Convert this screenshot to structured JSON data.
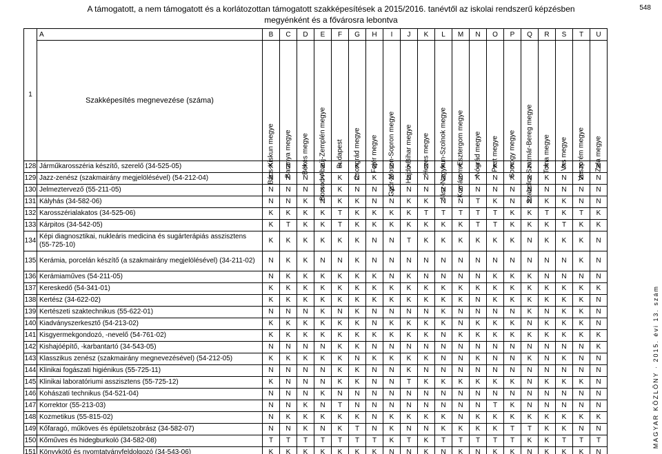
{
  "page": {
    "number": "548",
    "side_text": "MAGYAR KÖZLÖNY · 2015. évi 13. szám"
  },
  "header": {
    "line1": "A támogatott, a nem támogatott és a korlátozottan támogatott szakképesítések a 2015/2016. tanévtől az iskolai rendszerű képzésben",
    "line2": "megyénként és a fővárosra lebontva"
  },
  "columns": {
    "row_label": "1",
    "name_label": "Szakképesítés megnevezése (száma)",
    "letters": [
      "A",
      "B",
      "C",
      "D",
      "E",
      "F",
      "G",
      "H",
      "I",
      "J",
      "K",
      "L",
      "M",
      "N",
      "O",
      "P",
      "Q",
      "R",
      "S",
      "T",
      "U"
    ],
    "county_headers": [
      "Bács-Kiskun megye",
      "Baranya megye",
      "Békés megye",
      "Borsod-Abaúj-Zemplén megye",
      "Budapest",
      "Csongrád megye",
      "Fejér megye",
      "Győr-Moson-Sopron megye",
      "Hajdú-Bihar megye",
      "Heves megye",
      "Jász-Nagykun-Szolnok megye",
      "Komárom-Esztergom megye",
      "Nógrád megye",
      "Pest megye",
      "Somogy megye",
      "Szabolcs-Szatmár-Bereg megye",
      "Tolna megye",
      "Vas megye",
      "Veszprém megye",
      "Zala megye"
    ]
  },
  "rows": [
    {
      "n": "128",
      "name": "Járműkarosszéria készítő, szerelő (34-525-05)",
      "v": [
        "K",
        "N",
        "K",
        "N",
        "T",
        "K",
        "N",
        "N",
        "K",
        "N",
        "K",
        "K",
        "T",
        "K",
        "K",
        "K",
        "K",
        "K",
        "K",
        "N"
      ]
    },
    {
      "n": "129",
      "name": "Jazz-zenész (szakmairány megjelölésével) (54-212-04)",
      "v": [
        "N",
        "N",
        "N",
        "K",
        "K",
        "N",
        "K",
        "N",
        "N",
        "N",
        "N",
        "N",
        "K",
        "N",
        "K",
        "N",
        "K",
        "N",
        "N",
        "N"
      ]
    },
    {
      "n": "130",
      "name": "Jelmeztervező (55-211-05)",
      "v": [
        "N",
        "N",
        "N",
        "K",
        "K",
        "N",
        "N",
        "N",
        "N",
        "N",
        "N",
        "N",
        "N",
        "N",
        "N",
        "N",
        "N",
        "N",
        "N",
        "N"
      ]
    },
    {
      "n": "131",
      "name": "Kályhás (34-582-06)",
      "v": [
        "N",
        "N",
        "K",
        "N",
        "K",
        "K",
        "N",
        "N",
        "K",
        "K",
        "N",
        "N",
        "T",
        "K",
        "N",
        "N",
        "K",
        "K",
        "N",
        "N"
      ]
    },
    {
      "n": "132",
      "name": "Karosszérialakatos (34-525-06)",
      "v": [
        "K",
        "K",
        "K",
        "K",
        "T",
        "K",
        "K",
        "K",
        "K",
        "T",
        "T",
        "T",
        "T",
        "T",
        "K",
        "K",
        "T",
        "K",
        "T",
        "K"
      ]
    },
    {
      "n": "133",
      "name": "Kárpitos (34-542-05)",
      "v": [
        "K",
        "T",
        "K",
        "K",
        "T",
        "K",
        "K",
        "K",
        "K",
        "K",
        "K",
        "K",
        "T",
        "T",
        "K",
        "K",
        "K",
        "T",
        "K",
        "K"
      ]
    },
    {
      "n": "134",
      "name": "Képi diagnosztikai, nukleáris medicina és sugárterápiás asszisztens (55-725-10)",
      "v": [
        "K",
        "K",
        "K",
        "K",
        "K",
        "K",
        "N",
        "N",
        "T",
        "K",
        "K",
        "K",
        "K",
        "K",
        "K",
        "N",
        "K",
        "K",
        "K",
        "N"
      ],
      "tall": true
    },
    {
      "n": "135",
      "name": "Kerámia, porcelán készítő (a szakmairány megjelölésével) (34-211-02)",
      "v": [
        "N",
        "K",
        "K",
        "N",
        "N",
        "K",
        "N",
        "N",
        "N",
        "N",
        "N",
        "N",
        "N",
        "N",
        "N",
        "N",
        "N",
        "N",
        "K",
        "N"
      ],
      "tall": true
    },
    {
      "n": "136",
      "name": "Kerámiaműves (54-211-05)",
      "v": [
        "N",
        "K",
        "K",
        "K",
        "K",
        "K",
        "K",
        "N",
        "K",
        "N",
        "N",
        "N",
        "N",
        "K",
        "K",
        "K",
        "N",
        "N",
        "N",
        "N"
      ]
    },
    {
      "n": "137",
      "name": "Kereskedő (54-341-01)",
      "v": [
        "K",
        "K",
        "K",
        "K",
        "K",
        "K",
        "K",
        "K",
        "K",
        "K",
        "K",
        "K",
        "K",
        "K",
        "K",
        "K",
        "K",
        "K",
        "K",
        "K"
      ]
    },
    {
      "n": "138",
      "name": "Kertész (34-622-02)",
      "v": [
        "K",
        "K",
        "K",
        "K",
        "K",
        "K",
        "K",
        "K",
        "K",
        "K",
        "K",
        "K",
        "N",
        "K",
        "K",
        "K",
        "K",
        "K",
        "K",
        "N"
      ]
    },
    {
      "n": "139",
      "name": "Kertészeti szaktechnikus (55-622-01)",
      "v": [
        "N",
        "N",
        "N",
        "K",
        "N",
        "K",
        "N",
        "N",
        "N",
        "N",
        "K",
        "N",
        "N",
        "N",
        "N",
        "K",
        "N",
        "K",
        "K",
        "N"
      ]
    },
    {
      "n": "140",
      "name": "Kiadványszerkesztő (54-213-02)",
      "v": [
        "K",
        "K",
        "K",
        "K",
        "K",
        "K",
        "N",
        "K",
        "K",
        "K",
        "K",
        "N",
        "K",
        "K",
        "K",
        "N",
        "K",
        "K",
        "K",
        "N"
      ]
    },
    {
      "n": "141",
      "name": "Kisgyermekgondozó, -nevelő (54-761-02)",
      "v": [
        "K",
        "K",
        "K",
        "K",
        "K",
        "K",
        "K",
        "K",
        "K",
        "K",
        "N",
        "K",
        "K",
        "K",
        "K",
        "K",
        "K",
        "K",
        "K",
        "K"
      ]
    },
    {
      "n": "142",
      "name": "Kishajóépítő, -karbantartó (34-543-05)",
      "v": [
        "N",
        "N",
        "N",
        "N",
        "K",
        "K",
        "N",
        "N",
        "N",
        "N",
        "N",
        "N",
        "N",
        "N",
        "N",
        "N",
        "N",
        "N",
        "N",
        "K"
      ]
    },
    {
      "n": "143",
      "name": "Klasszikus zenész (szakmairány megnevezésével) (54-212-05)",
      "v": [
        "K",
        "K",
        "K",
        "K",
        "K",
        "N",
        "K",
        "K",
        "K",
        "K",
        "N",
        "N",
        "K",
        "N",
        "N",
        "K",
        "N",
        "K",
        "N",
        "N"
      ]
    },
    {
      "n": "144",
      "name": "Klinikai fogászati higiénikus (55-725-11)",
      "v": [
        "N",
        "N",
        "N",
        "N",
        "K",
        "K",
        "N",
        "N",
        "K",
        "N",
        "N",
        "N",
        "N",
        "N",
        "N",
        "N",
        "N",
        "N",
        "N",
        "N"
      ]
    },
    {
      "n": "145",
      "name": "Klinikai laboratóriumi asszisztens (55-725-12)",
      "v": [
        "K",
        "N",
        "N",
        "N",
        "K",
        "K",
        "N",
        "N",
        "T",
        "K",
        "K",
        "K",
        "K",
        "K",
        "K",
        "N",
        "K",
        "K",
        "K",
        "N"
      ]
    },
    {
      "n": "146",
      "name": "Kohászati technikus (54-521-04)",
      "v": [
        "N",
        "N",
        "N",
        "K",
        "N",
        "N",
        "N",
        "N",
        "N",
        "N",
        "N",
        "N",
        "N",
        "N",
        "N",
        "N",
        "N",
        "N",
        "N",
        "N"
      ]
    },
    {
      "n": "147",
      "name": "Korrektor (55-213-03)",
      "v": [
        "N",
        "N",
        "K",
        "N",
        "T",
        "N",
        "N",
        "N",
        "N",
        "N",
        "N",
        "N",
        "N",
        "T",
        "K",
        "N",
        "N",
        "N",
        "N",
        "N"
      ]
    },
    {
      "n": "148",
      "name": "Kozmetikus (55-815-02)",
      "v": [
        "N",
        "K",
        "K",
        "K",
        "K",
        "K",
        "N",
        "K",
        "K",
        "K",
        "K",
        "N",
        "K",
        "K",
        "K",
        "K",
        "K",
        "K",
        "K",
        "K"
      ]
    },
    {
      "n": "149",
      "name": "Kőfaragó, műköves és épületszobrász (34-582-07)",
      "v": [
        "N",
        "N",
        "K",
        "N",
        "K",
        "T",
        "N",
        "K",
        "N",
        "N",
        "K",
        "K",
        "K",
        "K",
        "T",
        "T",
        "K",
        "K",
        "N",
        "N"
      ]
    },
    {
      "n": "150",
      "name": "Kőműves és hidegburkoló (34-582-08)",
      "v": [
        "T",
        "T",
        "T",
        "T",
        "T",
        "T",
        "T",
        "K",
        "T",
        "K",
        "T",
        "T",
        "T",
        "T",
        "T",
        "K",
        "K",
        "T",
        "T",
        "T"
      ]
    },
    {
      "n": "151",
      "name": "Könyvkötő és nyomtatványfeldolgozó (34-543-06)",
      "v": [
        "K",
        "K",
        "K",
        "K",
        "K",
        "K",
        "K",
        "N",
        "N",
        "K",
        "N",
        "K",
        "N",
        "K",
        "K",
        "N",
        "K",
        "K",
        "K",
        "N"
      ]
    }
  ]
}
